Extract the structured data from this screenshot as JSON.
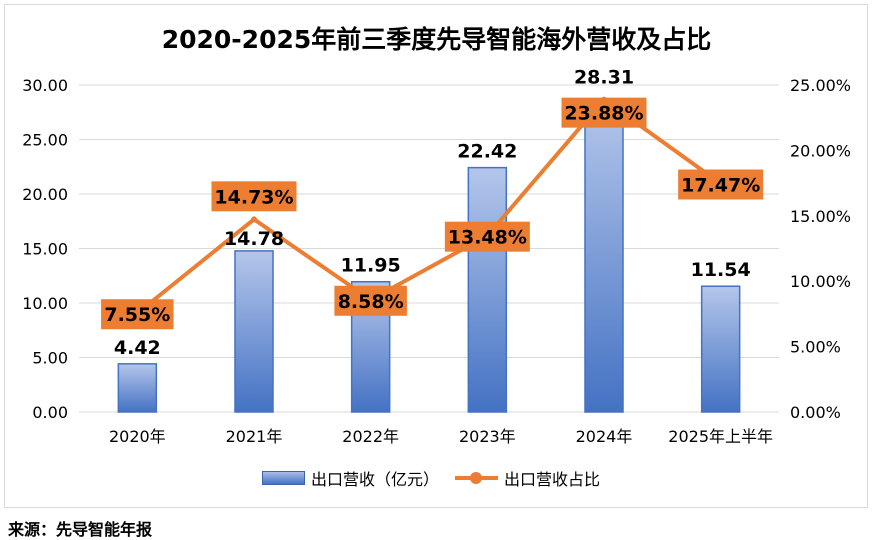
{
  "chart_data": {
    "type": "bar+line",
    "title": "2020-2025年前三季度先导智能海外营收及占比",
    "categories": [
      "2020年",
      "2021年",
      "2022年",
      "2023年",
      "2024年",
      "2025年上半年"
    ],
    "series": [
      {
        "name": "出口营收（亿元）",
        "type": "bar",
        "axis": "left",
        "values": [
          4.42,
          14.78,
          11.95,
          22.42,
          28.31,
          11.54
        ],
        "labels": [
          "4.42",
          "14.78",
          "11.95",
          "22.42",
          "28.31",
          "11.54"
        ],
        "color": "#4472C4"
      },
      {
        "name": "出口营收占比",
        "type": "line",
        "axis": "right",
        "values": [
          7.55,
          14.73,
          8.58,
          13.48,
          23.88,
          17.47
        ],
        "labels": [
          "7.55%",
          "14.73%",
          "8.58%",
          "13.48%",
          "23.88%",
          "17.47%"
        ],
        "color": "#ED7D31"
      }
    ],
    "left_axis": {
      "ylim": [
        0,
        30
      ],
      "ticks": [
        "0.00",
        "5.00",
        "10.00",
        "15.00",
        "20.00",
        "25.00",
        "30.00"
      ]
    },
    "right_axis": {
      "ylim": [
        0,
        25
      ],
      "ticks": [
        "0.00%",
        "5.00%",
        "10.00%",
        "15.00%",
        "20.00%",
        "25.00%"
      ]
    },
    "grid": true,
    "legend": "bottom"
  },
  "source": "来源：先导智能年报"
}
